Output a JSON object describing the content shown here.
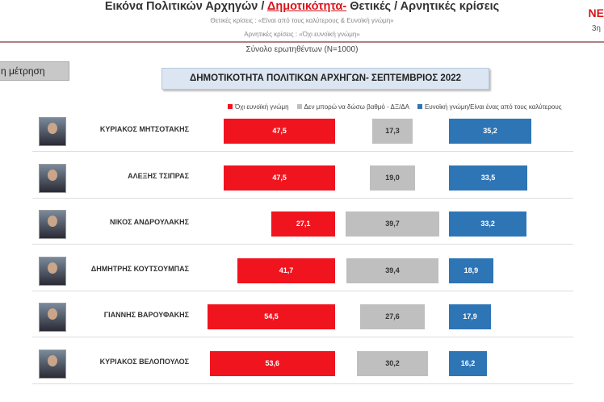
{
  "header": {
    "title_a": "Εικόνα Πολιτικών Αρχηγών  / ",
    "title_b": "Δημοτικότητα-",
    "title_c": " Θετικές / Αρνητικές κρίσεις",
    "positive": "Θετικές κρίσεις : «Είναι από τους καλύτερους &  Ευνοϊκή γνώμη»",
    "negative": "Αρνητικές κρίσεις : «Όχι ευνοϊκή γνώμη»",
    "brand": "ΝΕ",
    "wave": "3η",
    "total": "Σύνολο ερωτηθέντων (Ν=1000)",
    "measurement": "η μέτρηση"
  },
  "chart_data": {
    "type": "bar",
    "title": "ΔΗΜΟΤΙΚΟΤΗΤΑ ΠΟΛΙΤΙΚΩΝ ΑΡΧΗΓΩΝ- ΣΕΠΤΕΜΒΡΙΟΣ 2022",
    "categories": [
      "ΚΥΡΙΑΚΟΣ ΜΗΤΣΟΤΑΚΗΣ",
      "ΑΛΕΞΗΣ ΤΣΙΠΡΑΣ",
      "ΝΙΚΟΣ ΑΝΔΡΟΥΛΑΚΗΣ",
      "ΔΗΜΗΤΡΗΣ ΚΟΥΤΣΟΥΜΠΑΣ",
      "ΓΙΑΝΝΗΣ ΒΑΡΟΥΦΑΚΗΣ",
      "ΚΥΡΙΑΚΟΣ ΒΕΛΟΠΟΥΛΟΣ"
    ],
    "series": [
      {
        "name": "Όχι ευνοϊκή γνώμη",
        "color": "#f0141e",
        "values": [
          "47,5",
          "47,5",
          "27,1",
          "41,7",
          "54,5",
          "53,6"
        ]
      },
      {
        "name": "Δεν μπορώ να δώσω βαθμό - ΔΞ/ΔΑ",
        "color": "#bfbfbf",
        "values": [
          "17,3",
          "19,0",
          "39,7",
          "39,4",
          "27,6",
          "30,2"
        ]
      },
      {
        "name": "Ευνοϊκή γνώμη/Είναι ένας από τους καλύτερους",
        "color": "#2e75b6",
        "values": [
          "35,2",
          "33,5",
          "33,2",
          "18,9",
          "17,9",
          "16,2"
        ]
      }
    ],
    "legend": "top"
  }
}
